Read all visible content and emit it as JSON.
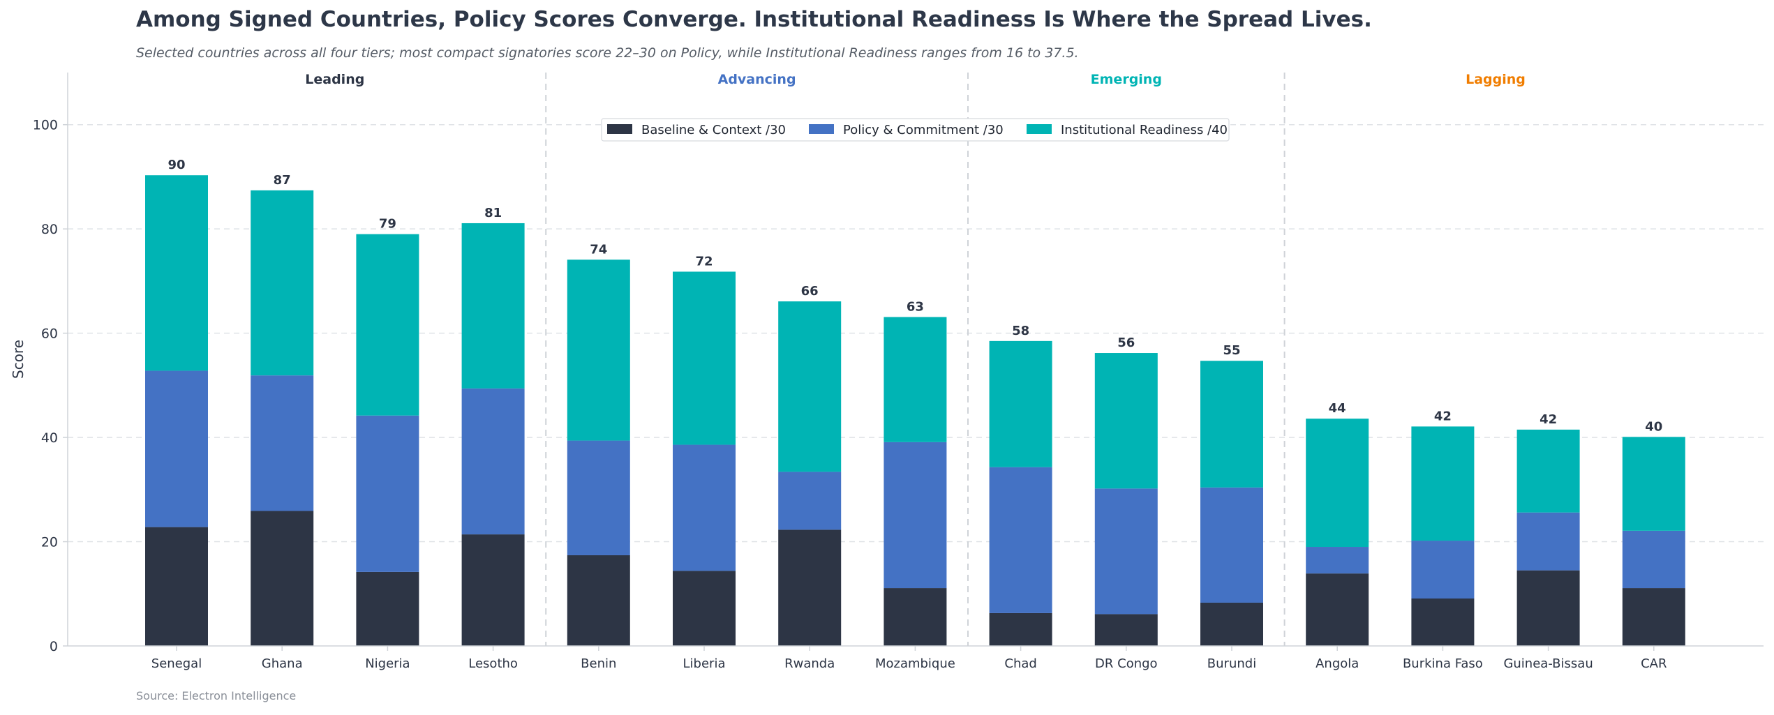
{
  "chart_data": {
    "type": "bar",
    "stacked": true,
    "title": "Among Signed Countries, Policy Scores Converge. Institutional Readiness Is Where the Spread Lives.",
    "subtitle": "Selected countries across all four tiers; most compact signatories score 22–30 on Policy, while Institutional Readiness ranges from 16 to 37.5.",
    "source": "Source: Electron Intelligence",
    "ylabel": "Score",
    "xlabel": "",
    "ylim": [
      0,
      110
    ],
    "yticks": [
      0,
      20,
      40,
      60,
      80,
      100
    ],
    "grid": true,
    "legend_position": "top-center",
    "categories": [
      "Senegal",
      "Ghana",
      "Nigeria",
      "Lesotho",
      "Benin",
      "Liberia",
      "Rwanda",
      "Mozambique",
      "Chad",
      "DR Congo",
      "Burundi",
      "Angola",
      "Burkina Faso",
      "Guinea-Bissau",
      "CAR"
    ],
    "series": [
      {
        "name": "Baseline & Context /30",
        "color": "#2d3545",
        "values": [
          22.8,
          25.9,
          14.2,
          21.4,
          17.4,
          14.4,
          22.3,
          11.1,
          6.3,
          6.1,
          8.3,
          13.9,
          9.1,
          14.5,
          11.1
        ]
      },
      {
        "name": "Policy & Commitment /30",
        "color": "#4472c4",
        "values": [
          30.0,
          26.0,
          30.0,
          28.0,
          22.0,
          24.2,
          11.1,
          28.0,
          28.0,
          24.1,
          22.1,
          5.1,
          11.1,
          11.1,
          11.0
        ]
      },
      {
        "name": "Institutional Readiness /40",
        "color": "#00b4b4",
        "values": [
          37.5,
          35.5,
          34.8,
          31.7,
          34.7,
          33.2,
          32.7,
          24.0,
          24.2,
          26.0,
          24.3,
          24.6,
          21.9,
          15.9,
          18.0
        ]
      }
    ],
    "totals": [
      "90",
      "87",
      "79",
      "81",
      "74",
      "72",
      "66",
      "63",
      "58",
      "56",
      "55",
      "44",
      "42",
      "42",
      "40"
    ],
    "tiers": [
      {
        "name": "Leading",
        "color": "#2d3545",
        "start": 0,
        "end": 3
      },
      {
        "name": "Advancing",
        "color": "#4472c4",
        "start": 4,
        "end": 7
      },
      {
        "name": "Emerging",
        "color": "#00b4b4",
        "start": 8,
        "end": 10
      },
      {
        "name": "Lagging",
        "color": "#f07d00",
        "start": 11,
        "end": 14
      }
    ]
  }
}
